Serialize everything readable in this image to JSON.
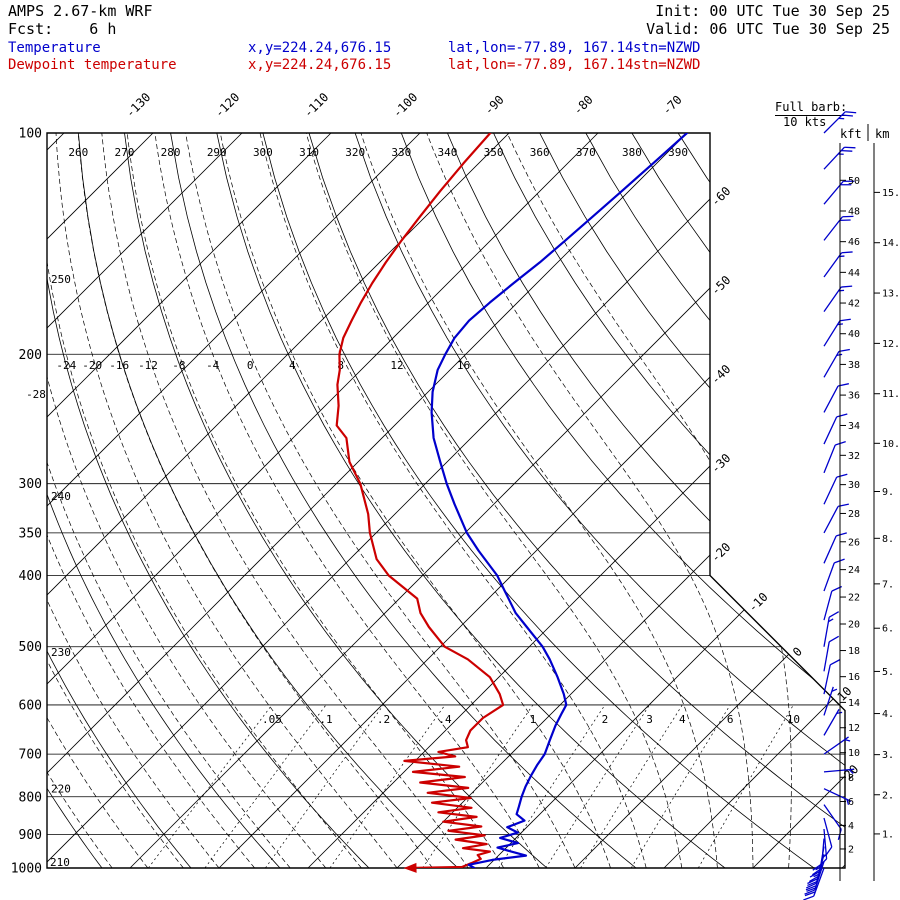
{
  "header": {
    "model": "AMPS 2.67-km WRF",
    "fcst": "Fcst:    6 h",
    "init": "Init: 00 UTC Tue 30 Sep 25",
    "valid": "Valid: 06 UTC Tue 30 Sep 25"
  },
  "legend": {
    "temperature": {
      "label": "Temperature",
      "xy": "x,y=224.24,676.15",
      "latlon": "lat,lon=-77.89, 167.14",
      "stn": "stn=NZWD"
    },
    "dewpoint": {
      "label": "Dewpoint temperature",
      "xy": "x,y=224.24,676.15",
      "latlon": "lat,lon=-77.89, 167.14",
      "stn": "stn=NZWD"
    }
  },
  "barb_note": {
    "line1": "Full barb:",
    "line2": "10 kts"
  },
  "axes_right": {
    "kft_title": "kft",
    "km_title": "km",
    "kft_ticks": [
      50,
      48,
      46,
      44,
      42,
      40,
      38,
      36,
      34,
      32,
      30,
      28,
      26,
      24,
      22,
      20,
      18,
      16,
      14,
      12,
      10,
      8,
      6,
      4,
      2
    ],
    "km_ticks": [
      15,
      14,
      13,
      12,
      11,
      10,
      9,
      8,
      7,
      6,
      5,
      4,
      3,
      2,
      1
    ]
  },
  "chart_data": {
    "type": "skewt_log_p",
    "pressure_hpa_ticks": [
      100,
      200,
      300,
      350,
      400,
      500,
      600,
      700,
      800,
      900,
      1000
    ],
    "pressure_range_hpa": [
      100,
      1000
    ],
    "isotherms_c": {
      "min": -160,
      "max": 40,
      "step": 10
    },
    "isotherm_labels_top_c": [
      -130,
      -120,
      -110,
      -100,
      -90,
      -80,
      -70
    ],
    "isotherm_labels_right_c": [
      -60,
      -50,
      -40,
      -30,
      -20,
      -10,
      0,
      10,
      20
    ],
    "dry_adiabats_k": [
      210,
      220,
      230,
      240,
      250,
      260,
      270,
      280,
      290,
      300,
      310,
      320,
      330,
      340,
      350,
      360,
      370,
      380,
      390
    ],
    "dry_adiabat_labels_top_k": [
      260,
      270,
      280,
      290,
      300,
      310,
      320,
      330,
      340,
      350,
      360,
      370,
      380,
      390
    ],
    "dry_adiabat_labels_left_k": [
      250,
      240,
      230,
      220,
      210
    ],
    "moist_adiabats_c": [
      -52,
      -48,
      -44,
      -40,
      -36,
      -32,
      -28,
      -24,
      -20,
      -16,
      -12,
      -8,
      -4,
      0,
      4,
      8,
      12,
      16,
      20,
      24
    ],
    "moist_adiabat_labels_c": [
      -28,
      -24,
      -20,
      -16,
      -12,
      -8,
      -4,
      0,
      4,
      8,
      12,
      16
    ],
    "mixing_ratio_g_kg": [
      0.05,
      0.1,
      0.2,
      0.4,
      1,
      2,
      3,
      4,
      6,
      10
    ],
    "temperature_profile_p_c": [
      [
        1000,
        -11.3
      ],
      [
        990,
        -12.3
      ],
      [
        975,
        -10.2
      ],
      [
        962,
        -6.9
      ],
      [
        950,
        -9.0
      ],
      [
        938,
        -11.0
      ],
      [
        925,
        -9.2
      ],
      [
        910,
        -11.8
      ],
      [
        895,
        -10.4
      ],
      [
        880,
        -12.2
      ],
      [
        862,
        -11.0
      ],
      [
        845,
        -12.6
      ],
      [
        825,
        -13.2
      ],
      [
        800,
        -14.0
      ],
      [
        775,
        -14.7
      ],
      [
        750,
        -15.3
      ],
      [
        725,
        -15.8
      ],
      [
        700,
        -16.2
      ],
      [
        670,
        -17.2
      ],
      [
        640,
        -18.2
      ],
      [
        615,
        -18.9
      ],
      [
        600,
        -19.3
      ],
      [
        580,
        -20.8
      ],
      [
        550,
        -23.4
      ],
      [
        520,
        -26.3
      ],
      [
        500,
        -28.5
      ],
      [
        470,
        -32.5
      ],
      [
        450,
        -35.3
      ],
      [
        420,
        -39.0
      ],
      [
        400,
        -41.6
      ],
      [
        370,
        -46.5
      ],
      [
        350,
        -49.8
      ],
      [
        320,
        -54.4
      ],
      [
        300,
        -57.6
      ],
      [
        280,
        -60.8
      ],
      [
        260,
        -64.2
      ],
      [
        240,
        -67.3
      ],
      [
        225,
        -69.5
      ],
      [
        210,
        -71.4
      ],
      [
        200,
        -72.3
      ],
      [
        190,
        -73.1
      ],
      [
        180,
        -73.4
      ],
      [
        170,
        -73.1
      ],
      [
        160,
        -72.6
      ],
      [
        150,
        -72.0
      ],
      [
        140,
        -71.6
      ],
      [
        130,
        -71.2
      ],
      [
        120,
        -70.8
      ],
      [
        110,
        -70.4
      ],
      [
        100,
        -70.0
      ]
    ],
    "dewpoint_profile_p_c": [
      [
        1000,
        -18.6
      ],
      [
        997,
        -12.8
      ],
      [
        985,
        -12.2
      ],
      [
        972,
        -11.6
      ],
      [
        960,
        -12.4
      ],
      [
        950,
        -11.4
      ],
      [
        940,
        -14.8
      ],
      [
        928,
        -12.6
      ],
      [
        915,
        -16.6
      ],
      [
        903,
        -13.8
      ],
      [
        890,
        -18.4
      ],
      [
        878,
        -15.2
      ],
      [
        865,
        -20.0
      ],
      [
        852,
        -16.8
      ],
      [
        840,
        -21.6
      ],
      [
        828,
        -18.4
      ],
      [
        815,
        -23.4
      ],
      [
        803,
        -19.6
      ],
      [
        790,
        -25.0
      ],
      [
        778,
        -21.0
      ],
      [
        765,
        -27.0
      ],
      [
        752,
        -22.6
      ],
      [
        740,
        -29.0
      ],
      [
        728,
        -24.4
      ],
      [
        715,
        -31.2
      ],
      [
        705,
        -26.0
      ],
      [
        695,
        -28.4
      ],
      [
        685,
        -25.6
      ],
      [
        670,
        -26.6
      ],
      [
        650,
        -27.2
      ],
      [
        625,
        -27.2
      ],
      [
        600,
        -26.4
      ],
      [
        580,
        -28.0
      ],
      [
        550,
        -31.0
      ],
      [
        520,
        -35.5
      ],
      [
        500,
        -39.5
      ],
      [
        470,
        -43.5
      ],
      [
        450,
        -46.0
      ],
      [
        430,
        -48.0
      ],
      [
        400,
        -53.8
      ],
      [
        380,
        -57.0
      ],
      [
        350,
        -60.7
      ],
      [
        330,
        -63.0
      ],
      [
        300,
        -67.3
      ],
      [
        280,
        -71.0
      ],
      [
        260,
        -74.0
      ],
      [
        250,
        -76.5
      ],
      [
        235,
        -78.5
      ],
      [
        220,
        -81.0
      ],
      [
        210,
        -82.4
      ],
      [
        200,
        -84.2
      ],
      [
        190,
        -85.6
      ],
      [
        180,
        -86.6
      ],
      [
        170,
        -87.6
      ],
      [
        160,
        -88.5
      ],
      [
        150,
        -89.3
      ],
      [
        140,
        -90.0
      ],
      [
        130,
        -90.6
      ],
      [
        120,
        -91.2
      ],
      [
        110,
        -91.7
      ],
      [
        100,
        -92.1
      ]
    ],
    "wind_profile_p_kt_dir": [
      [
        1000,
        30,
        200
      ],
      [
        980,
        30,
        198
      ],
      [
        958,
        28,
        195
      ],
      [
        935,
        25,
        190
      ],
      [
        912,
        20,
        185
      ],
      [
        885,
        15,
        175
      ],
      [
        855,
        12,
        165
      ],
      [
        820,
        10,
        145
      ],
      [
        780,
        8,
        115
      ],
      [
        740,
        5,
        85
      ],
      [
        700,
        5,
        55
      ],
      [
        660,
        6,
        30
      ],
      [
        620,
        8,
        18
      ],
      [
        580,
        10,
        12
      ],
      [
        540,
        12,
        10
      ],
      [
        500,
        15,
        10
      ],
      [
        460,
        12,
        15
      ],
      [
        420,
        10,
        20
      ],
      [
        385,
        10,
        24
      ],
      [
        350,
        10,
        28
      ],
      [
        320,
        10,
        25
      ],
      [
        290,
        10,
        22
      ],
      [
        265,
        10,
        25
      ],
      [
        240,
        12,
        28
      ],
      [
        215,
        15,
        30
      ],
      [
        195,
        15,
        32
      ],
      [
        175,
        15,
        35
      ],
      [
        157,
        18,
        36
      ],
      [
        140,
        20,
        38
      ],
      [
        125,
        22,
        40
      ],
      [
        112,
        25,
        43
      ],
      [
        100,
        25,
        45
      ]
    ],
    "colors": {
      "temperature": "#0000cc",
      "dewpoint": "#cc0000",
      "wind_barbs": "#0000cc",
      "grid": "#000000"
    }
  }
}
